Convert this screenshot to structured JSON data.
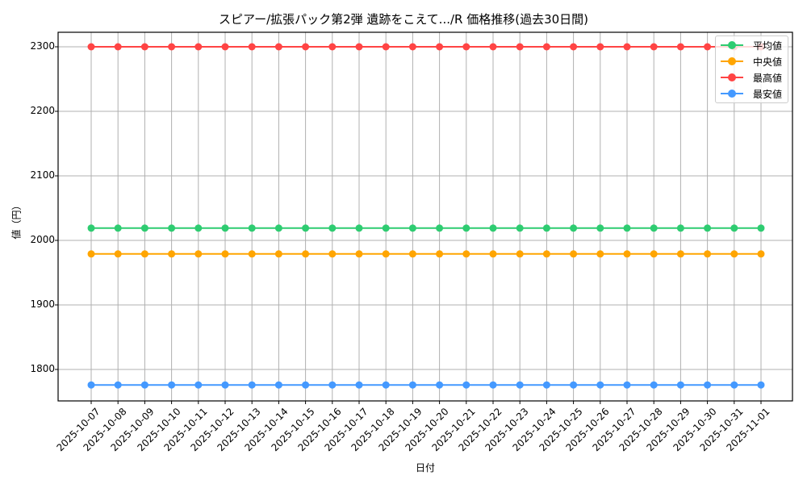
{
  "chart_data": {
    "type": "line",
    "title": "スピアー/拡張パック第2弾 遺跡をこえて.../R 価格推移(過去30日間)",
    "xlabel": "日付",
    "ylabel": "値（円）",
    "ylim": [
      1750,
      2320
    ],
    "yticks": [
      1800,
      1900,
      2000,
      2100,
      2200,
      2300
    ],
    "grid": true,
    "legend_position": "upper right",
    "categories": [
      "2025-10-07",
      "2025-10-08",
      "2025-10-09",
      "2025-10-10",
      "2025-10-11",
      "2025-10-12",
      "2025-10-13",
      "2025-10-14",
      "2025-10-15",
      "2025-10-16",
      "2025-10-17",
      "2025-10-18",
      "2025-10-19",
      "2025-10-20",
      "2025-10-21",
      "2025-10-22",
      "2025-10-23",
      "2025-10-24",
      "2025-10-25",
      "2025-10-26",
      "2025-10-27",
      "2025-10-28",
      "2025-10-29",
      "2025-10-30",
      "2025-10-31",
      "2025-11-01"
    ],
    "series": [
      {
        "name": "平均値",
        "color": "#2ecc71",
        "values": [
          2019,
          2019,
          2019,
          2019,
          2019,
          2019,
          2019,
          2019,
          2019,
          2019,
          2019,
          2019,
          2019,
          2019,
          2019,
          2019,
          2019,
          2019,
          2019,
          2019,
          2019,
          2019,
          2019,
          2019,
          2019,
          2019
        ]
      },
      {
        "name": "中央値",
        "color": "#ffa500",
        "values": [
          1979,
          1979,
          1979,
          1979,
          1979,
          1979,
          1979,
          1979,
          1979,
          1979,
          1979,
          1979,
          1979,
          1979,
          1979,
          1979,
          1979,
          1979,
          1979,
          1979,
          1979,
          1979,
          1979,
          1979,
          1979,
          1979
        ]
      },
      {
        "name": "最高値",
        "color": "#ff4444",
        "values": [
          2300,
          2300,
          2300,
          2300,
          2300,
          2300,
          2300,
          2300,
          2300,
          2300,
          2300,
          2300,
          2300,
          2300,
          2300,
          2300,
          2300,
          2300,
          2300,
          2300,
          2300,
          2300,
          2300,
          2300,
          2300,
          2300
        ]
      },
      {
        "name": "最安値",
        "color": "#4499ff",
        "values": [
          1776,
          1776,
          1776,
          1776,
          1776,
          1776,
          1776,
          1776,
          1776,
          1776,
          1776,
          1776,
          1776,
          1776,
          1776,
          1776,
          1776,
          1776,
          1776,
          1776,
          1776,
          1776,
          1776,
          1776,
          1776,
          1776
        ]
      }
    ]
  }
}
